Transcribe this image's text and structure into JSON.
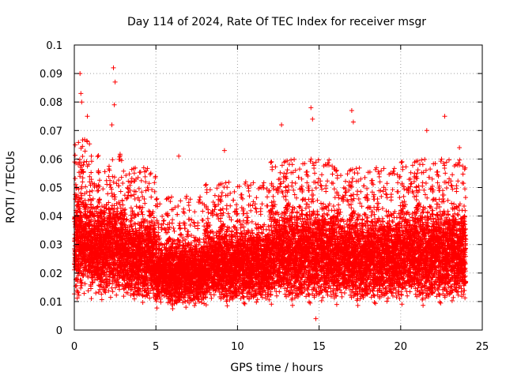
{
  "chart_data": {
    "type": "scatter",
    "title": "Day 114 of 2024, Rate Of TEC Index for receiver msgr",
    "xlabel": "GPS time / hours",
    "ylabel": "ROTI / TECUs",
    "xlim": [
      0,
      25
    ],
    "ylim": [
      0,
      0.1
    ],
    "x_ticks": [
      0,
      5,
      10,
      15,
      20,
      25
    ],
    "x_tick_labels": [
      "0",
      "5",
      "10",
      "15",
      "20",
      "25"
    ],
    "y_ticks": [
      0,
      0.01,
      0.02,
      0.03,
      0.04,
      0.05,
      0.06,
      0.07,
      0.08,
      0.09,
      0.1
    ],
    "y_tick_labels": [
      "0",
      "0.01",
      "0.02",
      "0.03",
      "0.04",
      "0.05",
      "0.06",
      "0.07",
      "0.08",
      "0.09",
      "0.1"
    ],
    "grid": true,
    "marker": "+",
    "marker_color": "#ff0000",
    "data_x_range": [
      0,
      24
    ],
    "notable_points": [
      {
        "x": 0.35,
        "y": 0.09
      },
      {
        "x": 0.4,
        "y": 0.083
      },
      {
        "x": 0.45,
        "y": 0.08
      },
      {
        "x": 2.4,
        "y": 0.092
      },
      {
        "x": 2.5,
        "y": 0.087
      },
      {
        "x": 2.45,
        "y": 0.079
      },
      {
        "x": 2.3,
        "y": 0.072
      },
      {
        "x": 0.8,
        "y": 0.075
      },
      {
        "x": 14.5,
        "y": 0.078
      },
      {
        "x": 14.6,
        "y": 0.074
      },
      {
        "x": 17.0,
        "y": 0.077
      },
      {
        "x": 17.1,
        "y": 0.073
      },
      {
        "x": 22.7,
        "y": 0.075
      },
      {
        "x": 21.6,
        "y": 0.07
      },
      {
        "x": 12.7,
        "y": 0.072
      },
      {
        "x": 6.4,
        "y": 0.061
      },
      {
        "x": 9.2,
        "y": 0.063
      },
      {
        "x": 23.6,
        "y": 0.064
      },
      {
        "x": 14.8,
        "y": 0.004
      }
    ],
    "density_profile": [
      {
        "x_range": [
          0,
          1
        ],
        "y_range": [
          0.01,
          0.055
        ]
      },
      {
        "x_range": [
          1,
          3
        ],
        "y_range": [
          0.01,
          0.05
        ]
      },
      {
        "x_range": [
          3,
          5
        ],
        "y_range": [
          0.008,
          0.045
        ]
      },
      {
        "x_range": [
          5,
          8
        ],
        "y_range": [
          0.007,
          0.035
        ]
      },
      {
        "x_range": [
          8,
          12
        ],
        "y_range": [
          0.008,
          0.04
        ]
      },
      {
        "x_range": [
          12,
          16
        ],
        "y_range": [
          0.008,
          0.048
        ]
      },
      {
        "x_range": [
          16,
          20
        ],
        "y_range": [
          0.008,
          0.045
        ]
      },
      {
        "x_range": [
          20,
          24
        ],
        "y_range": [
          0.008,
          0.048
        ]
      }
    ]
  }
}
